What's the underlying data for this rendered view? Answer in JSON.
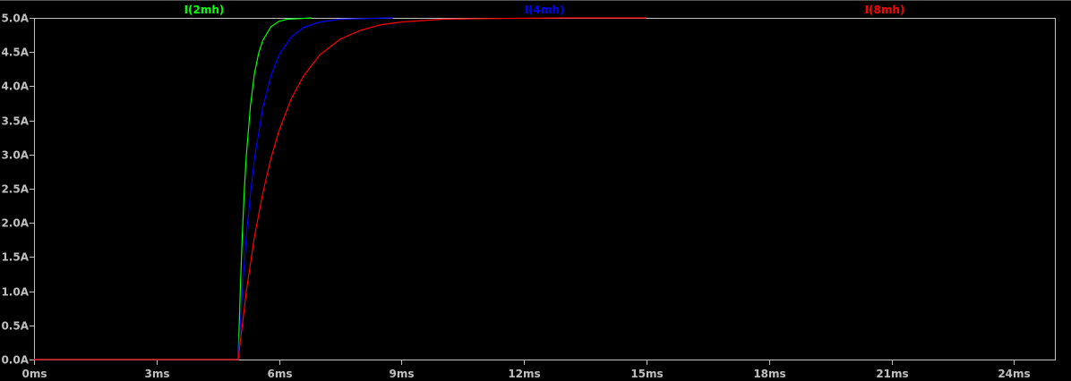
{
  "chart_data": {
    "type": "line",
    "title": "",
    "xlabel": "",
    "ylabel": "",
    "xlim": [
      0,
      25
    ],
    "ylim": [
      0,
      5
    ],
    "x_ticks": [
      0,
      3,
      6,
      9,
      12,
      15,
      18,
      21,
      24
    ],
    "x_tick_labels": [
      "0ms",
      "3ms",
      "6ms",
      "9ms",
      "12ms",
      "15ms",
      "18ms",
      "21ms",
      "24ms"
    ],
    "y_ticks": [
      0,
      0.5,
      1,
      1.5,
      2,
      2.5,
      3,
      3.5,
      4,
      4.5,
      5
    ],
    "y_tick_labels": [
      "0.0A",
      "0.5A",
      "1.0A",
      "1.5A",
      "2.0A",
      "2.5A",
      "3.0A",
      "3.5A",
      "4.0A",
      "4.5A",
      "5.0A"
    ],
    "grid": false,
    "legend_placement": "top",
    "background": "#000000",
    "axis_color": "#c0c0c0",
    "series": [
      {
        "name": "I(2mh)",
        "color": "#00ff00",
        "x": [
          0,
          5.0,
          5.05,
          5.1,
          5.15,
          5.2,
          5.3,
          5.4,
          5.5,
          5.6,
          5.8,
          6.0,
          6.2,
          6.5,
          6.8
        ],
        "y": [
          0,
          0,
          1.02,
          1.83,
          2.47,
          2.99,
          3.72,
          4.19,
          4.48,
          4.67,
          4.87,
          4.95,
          4.98,
          4.99,
          5.0
        ]
      },
      {
        "name": "I(4mh)",
        "color": "#0000ff",
        "x": [
          0,
          5.0,
          5.1,
          5.2,
          5.3,
          5.4,
          5.6,
          5.8,
          6.0,
          6.3,
          6.6,
          7.0,
          7.5,
          8.0,
          8.8
        ],
        "y": [
          0,
          0,
          1.0,
          1.8,
          2.43,
          2.94,
          3.68,
          4.15,
          4.46,
          4.72,
          4.86,
          4.94,
          4.98,
          4.99,
          5.0
        ]
      },
      {
        "name": "I(8mh)",
        "color": "#ff0000",
        "x": [
          0,
          5.0,
          5.2,
          5.4,
          5.6,
          5.8,
          6.0,
          6.3,
          6.6,
          7.0,
          7.5,
          8.0,
          8.5,
          9.0,
          10.0,
          11.0,
          13.0,
          15.0
        ],
        "y": [
          0,
          0,
          1.0,
          1.8,
          2.43,
          2.94,
          3.35,
          3.82,
          4.15,
          4.46,
          4.69,
          4.82,
          4.9,
          4.94,
          4.98,
          4.99,
          5.0,
          5.0
        ]
      }
    ]
  }
}
